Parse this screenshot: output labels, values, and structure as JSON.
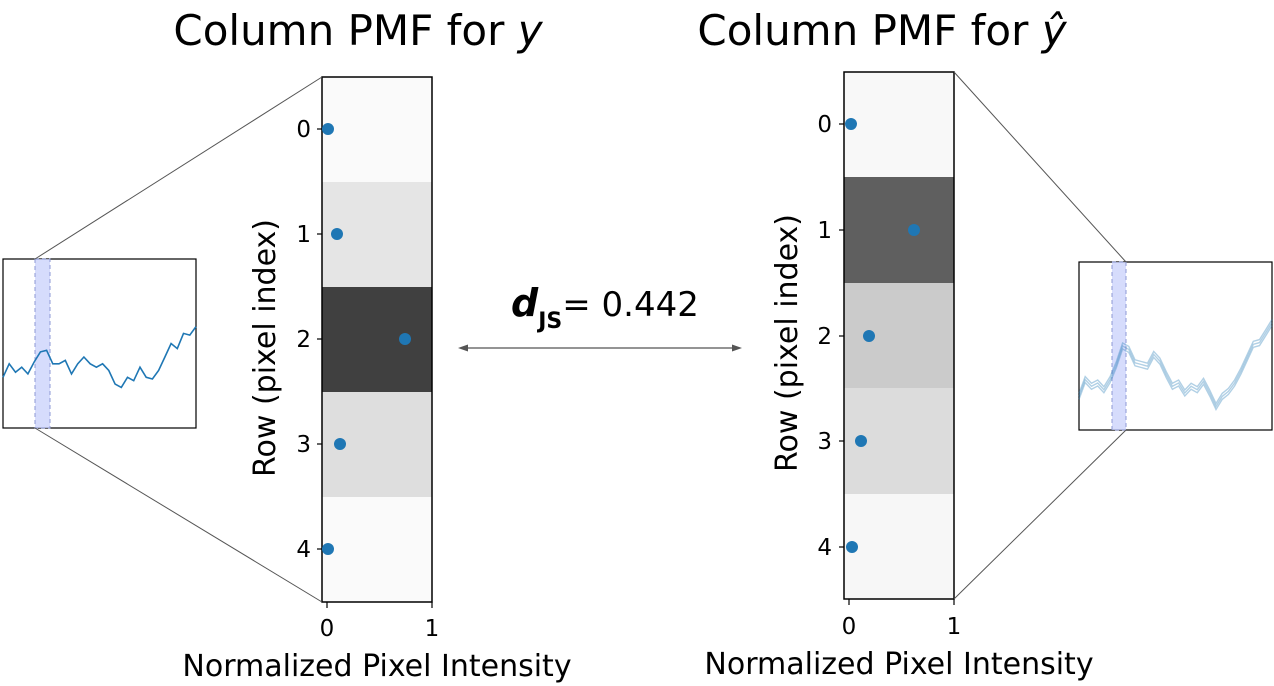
{
  "left_panel": {
    "title_text": "Column PMF for ",
    "title_var": "y",
    "ylabel": "Row (pixel index)",
    "xlabel": "Normalized Pixel Intensity",
    "row_ticks": [
      "0",
      "1",
      "2",
      "3",
      "4"
    ],
    "x_ticks": [
      "0",
      "1"
    ],
    "pmf": [
      0.0,
      0.1,
      0.75,
      0.13,
      0.0
    ],
    "cell_shades": [
      "#fafafa",
      "#e5e5e5",
      "#404040",
      "#dedede",
      "#fafafa"
    ]
  },
  "right_panel": {
    "title_text": "Column PMF for ",
    "title_var": "ŷ",
    "ylabel": "Row (pixel index)",
    "xlabel": "Normalized Pixel Intensity",
    "row_ticks": [
      "0",
      "1",
      "2",
      "3",
      "4"
    ],
    "x_ticks": [
      "0",
      "1"
    ],
    "pmf": [
      0.02,
      0.63,
      0.2,
      0.12,
      0.03
    ],
    "cell_shades": [
      "#f8f8f8",
      "#5f5f5f",
      "#cbcbcb",
      "#dcdcdc",
      "#f7f7f7"
    ]
  },
  "divergence": {
    "symbol": "d",
    "subscript": "JS",
    "value_text": "= 0.442"
  },
  "colors": {
    "dot": "#1f77b4",
    "series_line": "#1f77b4",
    "band_fill": "#c8d0fb",
    "band_edge": "#8d99d4",
    "connector": "#555555",
    "arrow": "#555555"
  },
  "left_series": [
    0.3,
    0.38,
    0.33,
    0.36,
    0.32,
    0.39,
    0.45,
    0.46,
    0.38,
    0.38,
    0.4,
    0.32,
    0.38,
    0.42,
    0.38,
    0.36,
    0.38,
    0.34,
    0.26,
    0.24,
    0.3,
    0.28,
    0.36,
    0.3,
    0.29,
    0.34,
    0.42,
    0.5,
    0.47,
    0.56,
    0.55,
    0.6
  ],
  "right_series": [
    0.2,
    0.3,
    0.26,
    0.28,
    0.24,
    0.3,
    0.39,
    0.5,
    0.48,
    0.4,
    0.39,
    0.38,
    0.45,
    0.41,
    0.33,
    0.26,
    0.28,
    0.22,
    0.26,
    0.24,
    0.29,
    0.22,
    0.14,
    0.2,
    0.23,
    0.28,
    0.35,
    0.43,
    0.51,
    0.52,
    0.58,
    0.64
  ]
}
